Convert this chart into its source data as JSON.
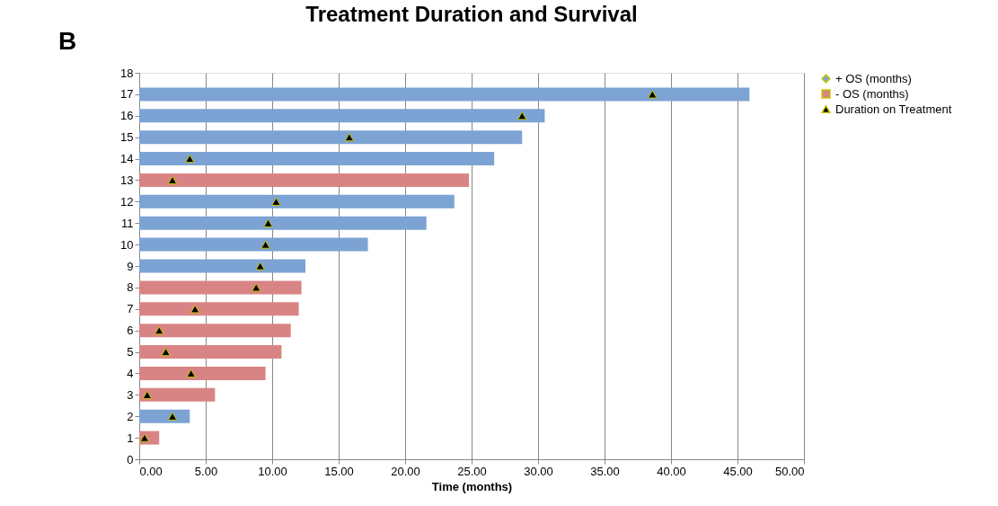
{
  "chart_data": {
    "type": "bar",
    "orientation": "horizontal",
    "title": "Treatment Duration and Survival",
    "xlabel": "Time (months)",
    "annotations": [
      "B"
    ],
    "x": [
      1,
      2,
      3,
      4,
      5,
      6,
      7,
      8,
      9,
      10,
      11,
      12,
      13,
      14,
      15,
      16,
      17
    ],
    "series": [
      {
        "name": "+ OS (months)",
        "color": "#7ca3d4",
        "marker": "diamond",
        "values": [
          null,
          3.8,
          null,
          null,
          null,
          null,
          null,
          null,
          12.5,
          17.2,
          21.6,
          23.7,
          null,
          26.7,
          28.8,
          30.5,
          45.9
        ]
      },
      {
        "name": "- OS (months)",
        "color": "#d98484",
        "marker": "square",
        "values": [
          1.5,
          null,
          5.7,
          9.5,
          10.7,
          11.4,
          12.0,
          12.2,
          null,
          null,
          null,
          null,
          24.8,
          null,
          null,
          null,
          null
        ]
      },
      {
        "name": "Duration on Treatment",
        "type": "scatter",
        "marker": "triangle",
        "color": "#000000",
        "values": [
          0.4,
          2.5,
          0.6,
          3.9,
          2.0,
          1.5,
          4.2,
          8.8,
          9.1,
          9.5,
          9.7,
          10.3,
          2.5,
          3.8,
          15.8,
          28.8,
          38.6
        ]
      }
    ],
    "xlim": [
      0,
      50
    ],
    "xticks": [
      {
        "value": 0,
        "label": "0.00"
      },
      {
        "value": 5,
        "label": "5.00"
      },
      {
        "value": 10,
        "label": "10.00"
      },
      {
        "value": 15,
        "label": "15.00"
      },
      {
        "value": 20,
        "label": "20.00"
      },
      {
        "value": 25,
        "label": "25.00"
      },
      {
        "value": 30,
        "label": "30.00"
      },
      {
        "value": 35,
        "label": "35.00"
      },
      {
        "value": 40,
        "label": "40.00"
      },
      {
        "value": 45,
        "label": "45.00"
      },
      {
        "value": 50,
        "label": "50.00"
      }
    ],
    "ylim": [
      0,
      18
    ],
    "yticks": [
      0,
      1,
      2,
      3,
      4,
      5,
      6,
      7,
      8,
      9,
      10,
      11,
      12,
      13,
      14,
      15,
      16,
      17,
      18
    ],
    "grid": "x",
    "legend": "right"
  }
}
